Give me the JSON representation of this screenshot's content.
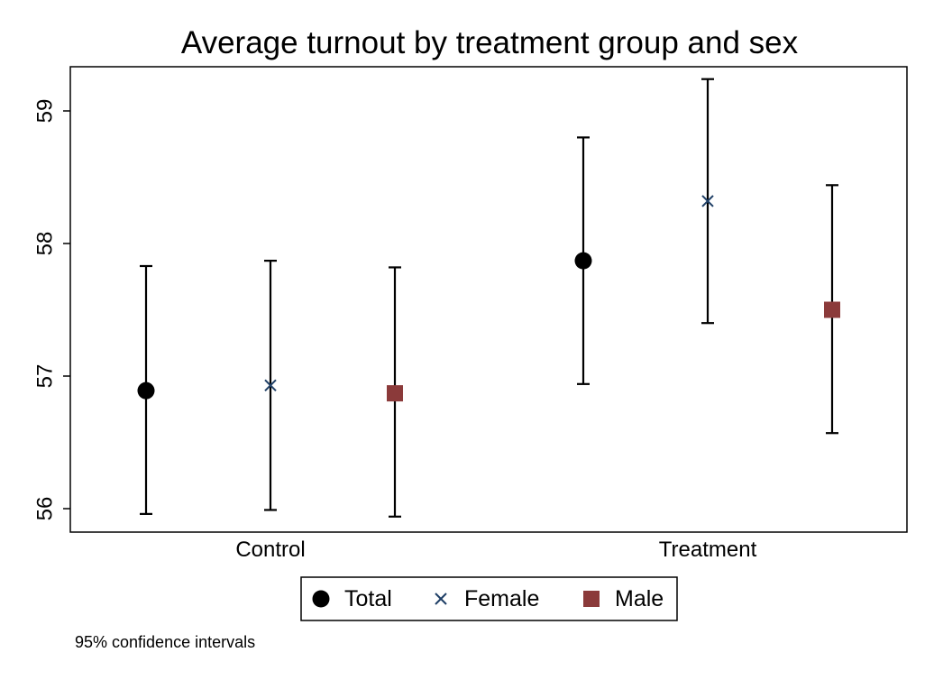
{
  "chart_data": {
    "type": "scatter",
    "title": "Average turnout by treatment group and sex",
    "note": "95% confidence intervals",
    "xlabel": "",
    "ylabel": "",
    "ylim": [
      55.85,
      59.35
    ],
    "yticks": [
      56,
      57,
      58,
      59
    ],
    "categories": [
      "Control",
      "Treatment"
    ],
    "series": [
      {
        "name": "Total",
        "marker": "circle",
        "color": "#000000",
        "values": [
          56.89,
          57.87
        ],
        "ci_low": [
          55.96,
          56.94
        ],
        "ci_high": [
          57.83,
          58.8
        ]
      },
      {
        "name": "Female",
        "marker": "x",
        "color": "#1f3f66",
        "values": [
          56.93,
          58.32
        ],
        "ci_low": [
          55.99,
          57.4
        ],
        "ci_high": [
          57.87,
          59.24
        ]
      },
      {
        "name": "Male",
        "marker": "square",
        "color": "#8b3a3a",
        "values": [
          56.87,
          57.5
        ],
        "ci_low": [
          55.94,
          56.57
        ],
        "ci_high": [
          57.82,
          58.44
        ]
      }
    ],
    "legend_position": "bottom",
    "grid": false
  }
}
